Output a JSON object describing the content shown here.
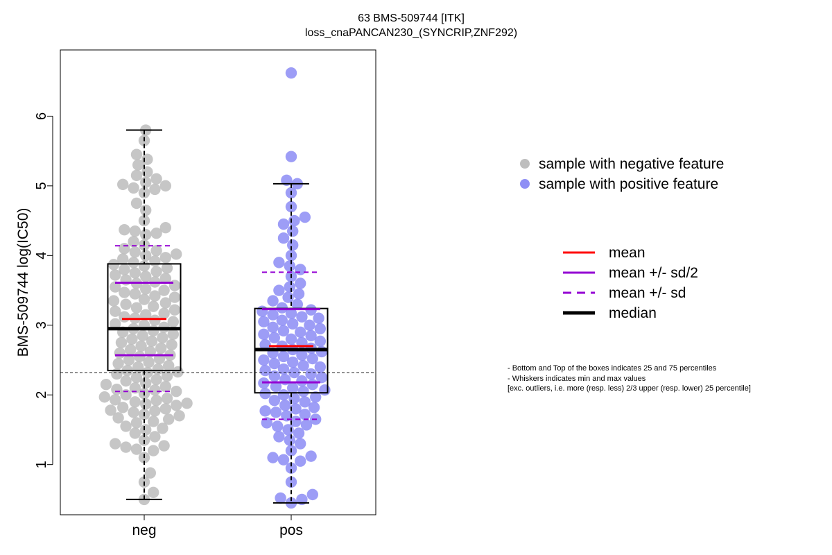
{
  "chart_data": {
    "type": "scatter",
    "title": "63 BMS-509744 [ITK]",
    "subtitle": "loss_cnaPANCAN230_(SYNCRIP,ZNF292)",
    "xlabel": "",
    "ylabel": "BMS-509744 log(IC50)",
    "categories": [
      "neg",
      "pos"
    ],
    "ylim": [
      0.28,
      6.95
    ],
    "yticks": [
      1,
      2,
      3,
      4,
      5,
      6
    ],
    "reference_line_y": 2.32,
    "grid": false,
    "legend_position": "right",
    "legend_points": [
      {
        "label": "sample with negative feature",
        "color": "#bebebe"
      },
      {
        "label": "sample with positive feature",
        "color": "#8f8ff5"
      }
    ],
    "legend_lines": [
      {
        "label": "mean",
        "color": "#ff0000",
        "style": "solid"
      },
      {
        "label": "mean +/- sd/2",
        "color": "#9400d3",
        "style": "solid"
      },
      {
        "label": "mean +/- sd",
        "color": "#9400d3",
        "style": "dashed"
      },
      {
        "label": "median",
        "color": "#000000",
        "style": "solid-thick"
      }
    ],
    "series": [
      {
        "name": "neg",
        "color": "#bebebe",
        "box": {
          "q1": 2.35,
          "median": 2.95,
          "q3": 3.88,
          "whisker_low": 0.5,
          "whisker_high": 5.8
        },
        "mean": 3.09,
        "mean_minus_half_sd": 2.57,
        "mean_plus_half_sd": 3.61,
        "mean_minus_sd": 2.05,
        "mean_plus_sd": 4.14,
        "values": [
          0.5,
          0.6,
          0.75,
          0.88,
          1.1,
          1.2,
          1.22,
          1.25,
          1.27,
          1.3,
          1.35,
          1.4,
          1.45,
          1.5,
          1.52,
          1.55,
          1.6,
          1.62,
          1.65,
          1.67,
          1.7,
          1.72,
          1.75,
          1.77,
          1.78,
          1.8,
          1.82,
          1.85,
          1.87,
          1.88,
          1.9,
          1.92,
          1.93,
          1.95,
          1.97,
          2.0,
          2.02,
          2.05,
          2.07,
          2.08,
          2.1,
          2.12,
          2.15,
          2.17,
          2.2,
          2.22,
          2.25,
          2.27,
          2.3,
          2.32,
          2.33,
          2.35,
          2.37,
          2.4,
          2.42,
          2.45,
          2.47,
          2.5,
          2.52,
          2.55,
          2.57,
          2.6,
          2.62,
          2.65,
          2.67,
          2.7,
          2.72,
          2.75,
          2.77,
          2.8,
          2.82,
          2.85,
          2.87,
          2.9,
          2.92,
          2.95,
          2.97,
          3.0,
          3.02,
          3.05,
          3.07,
          3.1,
          3.12,
          3.15,
          3.17,
          3.2,
          3.22,
          3.25,
          3.27,
          3.3,
          3.32,
          3.35,
          3.37,
          3.4,
          3.42,
          3.45,
          3.47,
          3.5,
          3.52,
          3.55,
          3.57,
          3.6,
          3.62,
          3.65,
          3.67,
          3.7,
          3.72,
          3.75,
          3.77,
          3.8,
          3.82,
          3.85,
          3.87,
          3.9,
          3.92,
          3.95,
          3.97,
          4.0,
          4.02,
          4.05,
          4.07,
          4.1,
          4.15,
          4.2,
          4.3,
          4.32,
          4.35,
          4.37,
          4.4,
          4.5,
          4.65,
          4.75,
          4.9,
          4.95,
          4.97,
          5.0,
          5.02,
          5.05,
          5.1,
          5.15,
          5.2,
          5.3,
          5.38,
          5.45,
          5.65,
          5.8
        ]
      },
      {
        "name": "pos",
        "color": "#8f8ff5",
        "box": {
          "q1": 2.03,
          "median": 2.65,
          "q3": 3.24,
          "whisker_low": 0.45,
          "whisker_high": 5.03
        },
        "mean": 2.7,
        "mean_minus_half_sd": 2.18,
        "mean_plus_half_sd": 3.23,
        "mean_minus_sd": 1.65,
        "mean_plus_sd": 3.76,
        "values": [
          0.45,
          0.5,
          0.52,
          0.57,
          0.75,
          0.95,
          1.05,
          1.07,
          1.1,
          1.12,
          1.2,
          1.3,
          1.35,
          1.4,
          1.45,
          1.5,
          1.55,
          1.57,
          1.6,
          1.62,
          1.65,
          1.7,
          1.72,
          1.75,
          1.77,
          1.8,
          1.82,
          1.85,
          1.9,
          1.92,
          1.95,
          1.97,
          2.0,
          2.02,
          2.05,
          2.07,
          2.1,
          2.12,
          2.15,
          2.17,
          2.2,
          2.22,
          2.25,
          2.27,
          2.3,
          2.32,
          2.35,
          2.37,
          2.4,
          2.42,
          2.45,
          2.47,
          2.5,
          2.52,
          2.55,
          2.57,
          2.6,
          2.62,
          2.65,
          2.67,
          2.7,
          2.72,
          2.75,
          2.77,
          2.8,
          2.82,
          2.85,
          2.87,
          2.9,
          2.92,
          2.95,
          2.97,
          3.0,
          3.02,
          3.05,
          3.07,
          3.1,
          3.12,
          3.15,
          3.17,
          3.2,
          3.22,
          3.25,
          3.3,
          3.35,
          3.4,
          3.45,
          3.5,
          3.55,
          3.6,
          3.7,
          3.8,
          3.85,
          3.9,
          4.0,
          4.15,
          4.25,
          4.35,
          4.45,
          4.5,
          4.55,
          4.7,
          4.9,
          5.03,
          5.08,
          5.42,
          6.62
        ]
      }
    ]
  },
  "notes": [
    "- Bottom and Top of the boxes indicates 25 and 75 percentiles",
    "- Whiskers indicates min and max values",
    "[exc. outliers, i.e. more (resp. less) 2/3 upper (resp. lower) 25 percentile]"
  ]
}
